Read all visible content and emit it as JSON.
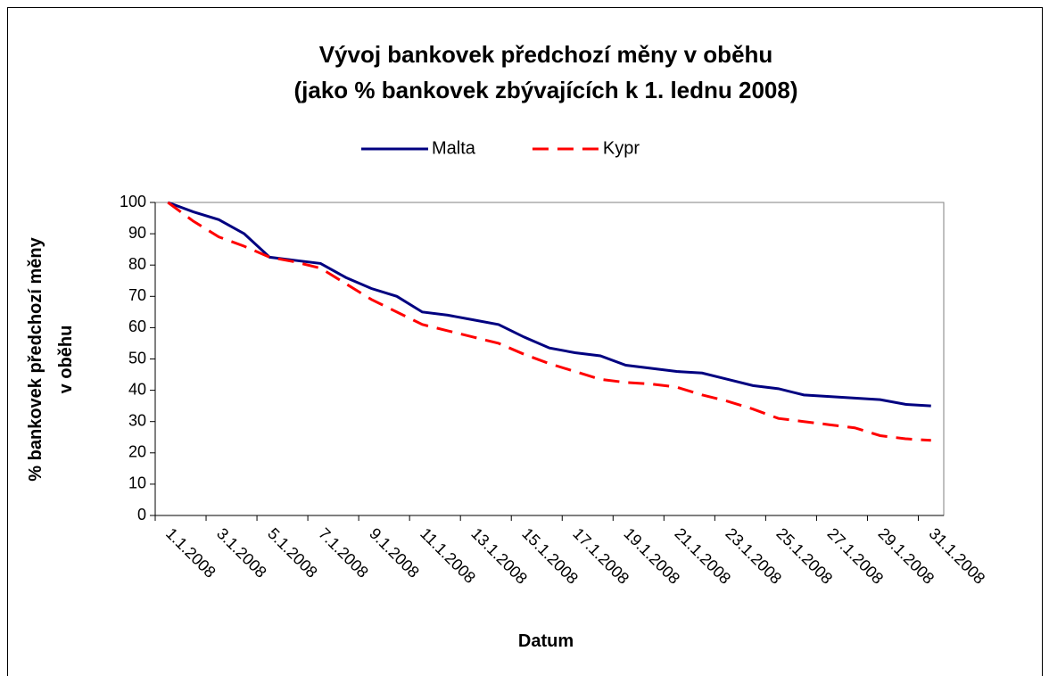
{
  "chart_data": {
    "type": "line",
    "title": [
      "Vývoj bankovek předchozí měny v oběhu",
      "(jako % bankovek zbývajících k 1. lednu 2008)"
    ],
    "x_label": "Datum",
    "y_label": [
      "% bankovek předchozí měny",
      "v oběhu"
    ],
    "categories": [
      "1.1.2008",
      null,
      "3.1.2008",
      null,
      "5.1.2008",
      null,
      "7.1.2008",
      null,
      "9.1.2008",
      null,
      "11.1.2008",
      null,
      "13.1.2008",
      null,
      "15.1.2008",
      null,
      "17.1.2008",
      null,
      "19.1.2008",
      null,
      "21.1.2008",
      null,
      "23.1.2008",
      null,
      "25.1.2008",
      null,
      "27.1.2008",
      null,
      "29.1.2008",
      null,
      "31.1.2008"
    ],
    "series": [
      {
        "name": "Malta",
        "color": "#000080",
        "dashed": false,
        "values": [
          100,
          97,
          94.5,
          90,
          82.5,
          81.5,
          80.5,
          76,
          72.5,
          70,
          65,
          64,
          62.5,
          61,
          57,
          53.5,
          52,
          51,
          48,
          47,
          46,
          45.5,
          43.5,
          41.5,
          40.5,
          38.5,
          38,
          37.5,
          37,
          35.5,
          35
        ]
      },
      {
        "name": "Kypr",
        "color": "#ff0000",
        "dashed": true,
        "values": [
          100,
          94,
          89,
          86,
          82.5,
          81,
          79,
          74,
          69,
          65,
          61,
          59,
          57,
          55,
          51.5,
          48.5,
          46,
          43.5,
          42.5,
          42,
          41,
          38.5,
          36.5,
          34,
          31,
          30,
          29,
          28,
          25.5,
          24.5,
          24
        ]
      }
    ],
    "ylim": [
      0,
      100
    ],
    "yticks": [
      0,
      10,
      20,
      30,
      40,
      50,
      60,
      70,
      80,
      90,
      100
    ],
    "grid": false,
    "legend": "top"
  }
}
